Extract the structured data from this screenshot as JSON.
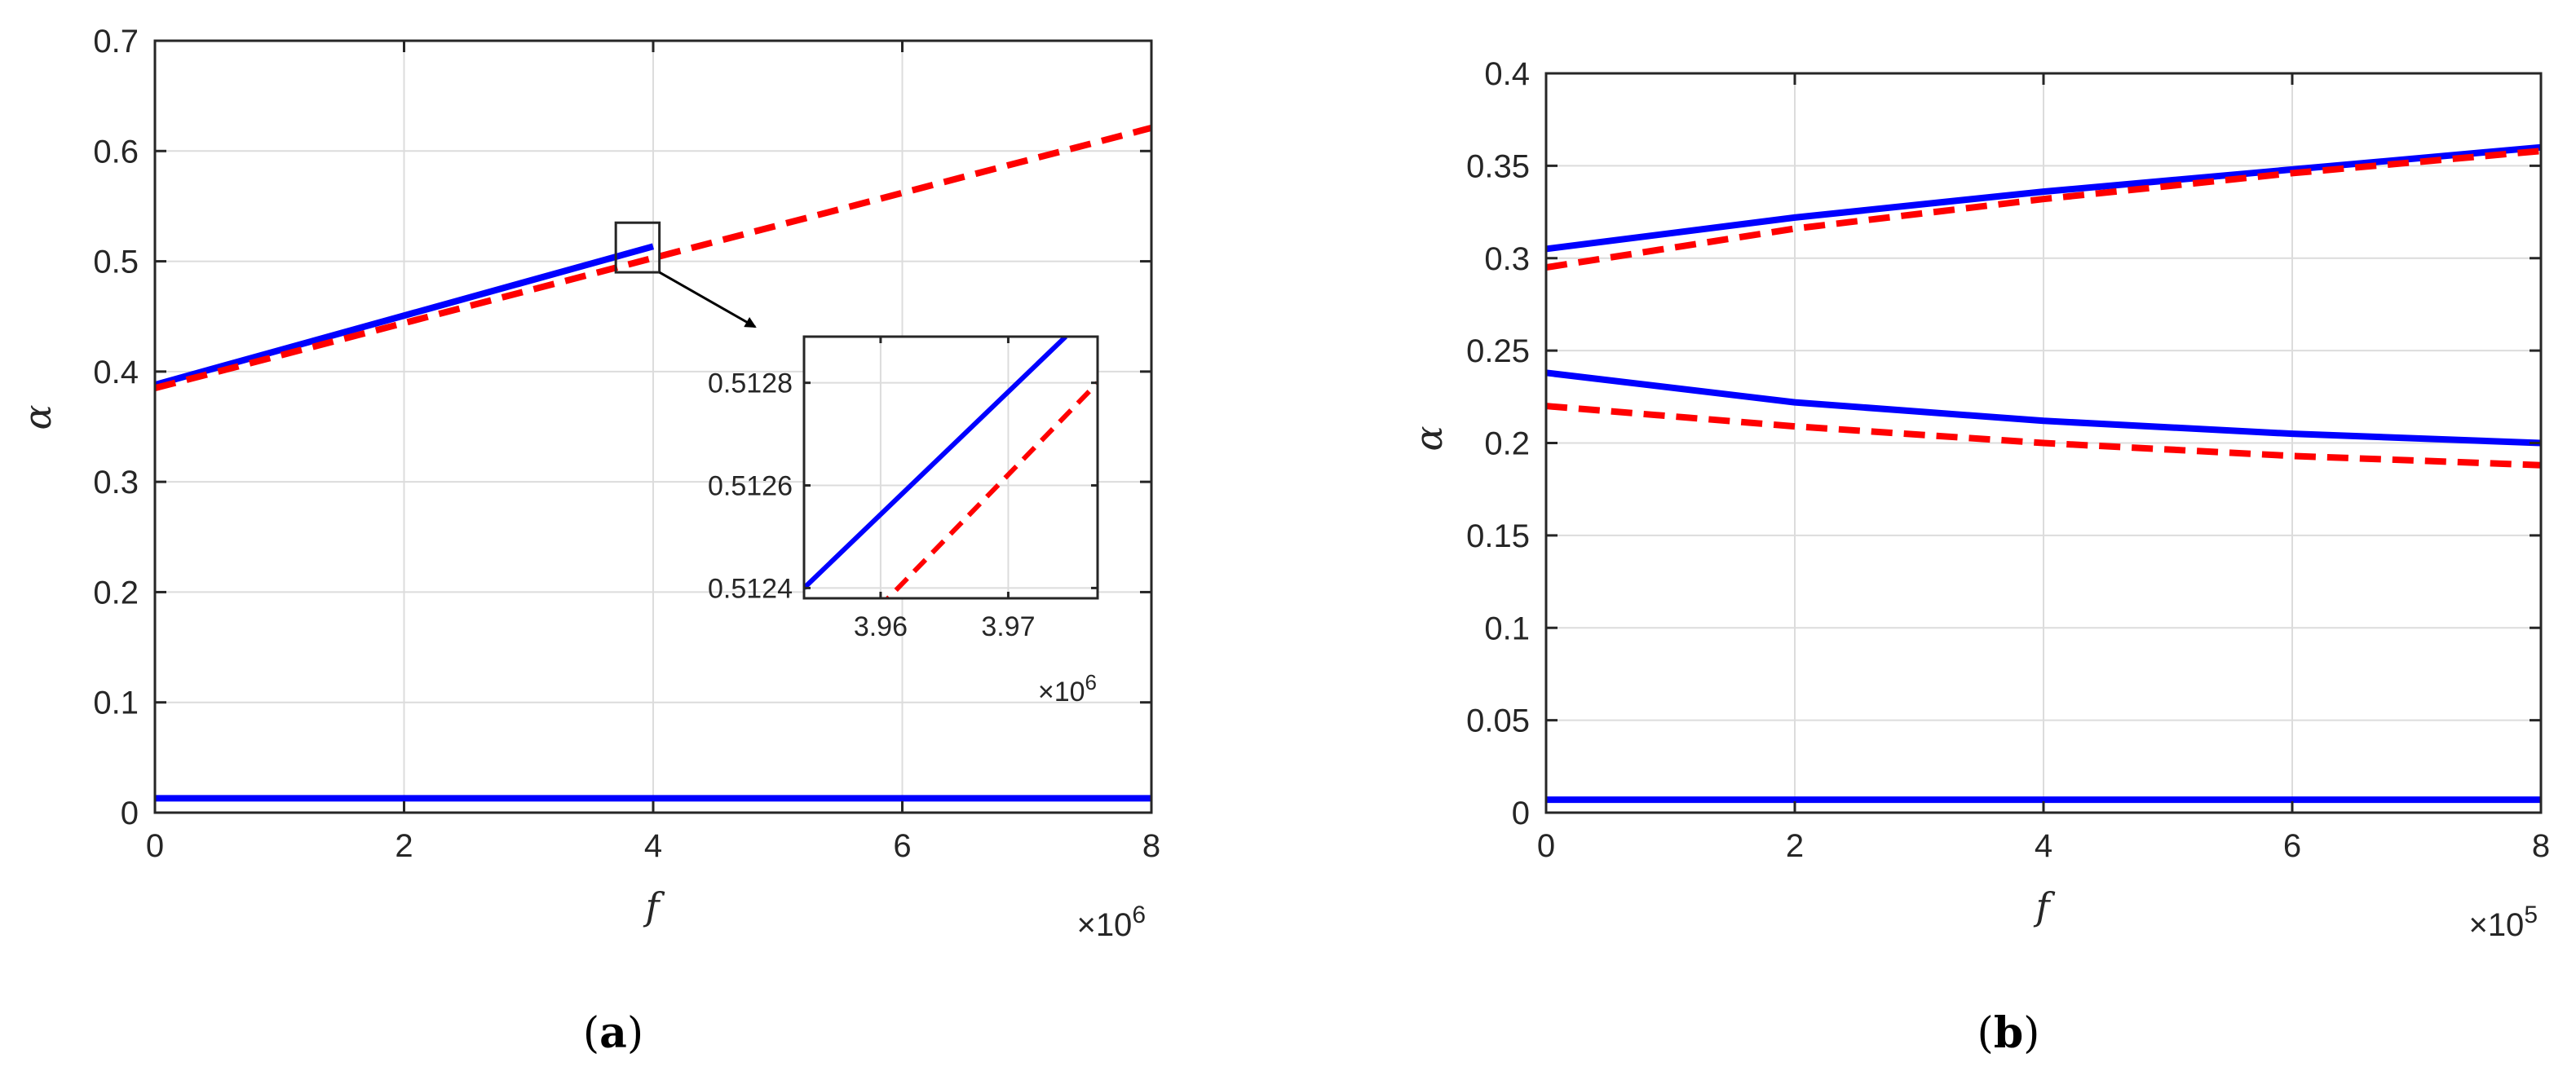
{
  "caption_a": {
    "open": "(",
    "letter": "a",
    "close": ")"
  },
  "caption_b": {
    "open": "(",
    "letter": "b",
    "close": ")"
  },
  "chart_data": [
    {
      "type": "line",
      "xlabel": "f",
      "ylabel": "α",
      "xlim": [
        0,
        8
      ],
      "ylim": [
        0,
        0.7
      ],
      "x_multiplier": "×10",
      "x_multiplier_exp": "6",
      "xticks": [
        0,
        2,
        4,
        6,
        8
      ],
      "xtick_labels": [
        "0",
        "2",
        "4",
        "6",
        "8"
      ],
      "yticks": [
        0,
        0.1,
        0.2,
        0.3,
        0.4,
        0.5,
        0.6,
        0.7
      ],
      "ytick_labels": [
        "0",
        "0.1",
        "0.2",
        "0.3",
        "0.4",
        "0.5",
        "0.6",
        "0.7"
      ],
      "grid": true,
      "series": [
        {
          "style": "solid",
          "color": "#0000ff",
          "x": [
            0,
            4
          ],
          "y": [
            0.388,
            0.5135
          ]
        },
        {
          "style": "dashed",
          "color": "#ff0000",
          "x": [
            0,
            8
          ],
          "y": [
            0.385,
            0.621
          ]
        },
        {
          "style": "solid",
          "color": "#0000ff",
          "x": [
            0,
            8
          ],
          "y": [
            0.013,
            0.013
          ]
        }
      ],
      "zoom_box": {
        "xlim": [
          3.7,
          4.05
        ],
        "ylim": [
          0.49,
          0.535
        ]
      },
      "inset": {
        "xlim": [
          3.954,
          3.977
        ],
        "ylim": [
          0.51238,
          0.51289
        ],
        "x_multiplier": "×10",
        "x_multiplier_exp": "6",
        "xticks": [
          3.96,
          3.97
        ],
        "xtick_labels": [
          "3.96",
          "3.97"
        ],
        "yticks": [
          0.5124,
          0.5126,
          0.5128
        ],
        "ytick_labels": [
          "0.5124",
          "0.5126",
          "0.5128"
        ],
        "grid": true,
        "series": [
          {
            "style": "solid",
            "color": "#0000ff",
            "x": [
              3.954,
              3.9745
            ],
            "y": [
              0.5124,
              0.51289
            ]
          },
          {
            "style": "dashed",
            "color": "#ff0000",
            "x": [
              3.9555,
              3.977
            ],
            "y": [
              0.51225,
              0.5128
            ]
          }
        ]
      }
    },
    {
      "type": "line",
      "xlabel": "f",
      "ylabel": "α",
      "xlim": [
        0,
        8
      ],
      "ylim": [
        0,
        0.4
      ],
      "x_multiplier": "×10",
      "x_multiplier_exp": "5",
      "xticks": [
        0,
        2,
        4,
        6,
        8
      ],
      "xtick_labels": [
        "0",
        "2",
        "4",
        "6",
        "8"
      ],
      "yticks": [
        0,
        0.05,
        0.1,
        0.15,
        0.2,
        0.25,
        0.3,
        0.35,
        0.4
      ],
      "ytick_labels": [
        "0",
        "0.05",
        "0.1",
        "0.15",
        "0.2",
        "0.25",
        "0.3",
        "0.35",
        "0.4"
      ],
      "grid": true,
      "series": [
        {
          "style": "solid",
          "color": "#0000ff",
          "x": [
            0,
            2,
            4,
            6,
            8
          ],
          "y": [
            0.305,
            0.322,
            0.336,
            0.348,
            0.36
          ]
        },
        {
          "style": "dashed",
          "color": "#ff0000",
          "x": [
            0,
            2,
            4,
            6,
            8
          ],
          "y": [
            0.295,
            0.316,
            0.332,
            0.346,
            0.358
          ]
        },
        {
          "style": "solid",
          "color": "#0000ff",
          "x": [
            0,
            2,
            4,
            6,
            8
          ],
          "y": [
            0.238,
            0.222,
            0.212,
            0.205,
            0.2
          ]
        },
        {
          "style": "dashed",
          "color": "#ff0000",
          "x": [
            0,
            2,
            4,
            6,
            8
          ],
          "y": [
            0.22,
            0.209,
            0.2,
            0.193,
            0.188
          ]
        },
        {
          "style": "solid",
          "color": "#0000ff",
          "x": [
            0,
            8
          ],
          "y": [
            0.007,
            0.007
          ]
        }
      ]
    }
  ]
}
